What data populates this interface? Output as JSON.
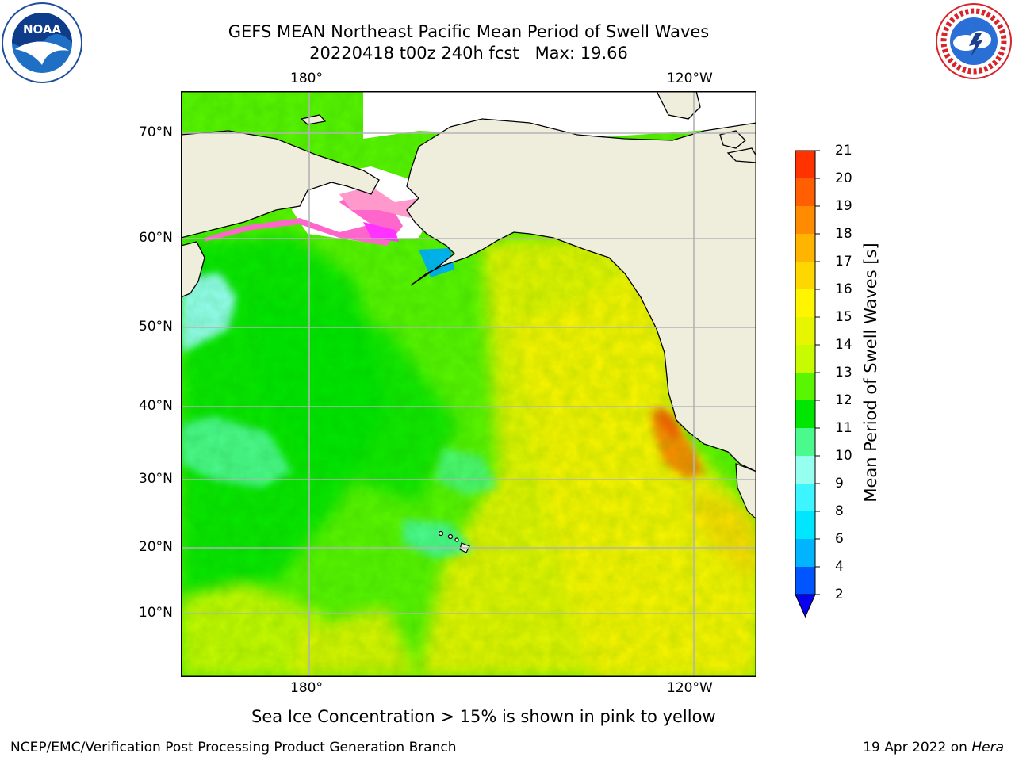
{
  "title_line1": "GEFS MEAN Northeast Pacific Mean Period of Swell Waves",
  "title_line2": "20220418 t00z 240h fcst   Max: 19.66",
  "map": {
    "lon_labels_top": [
      "180°",
      "120°W"
    ],
    "lon_labels_bottom": [
      "180°",
      "120°W"
    ],
    "lat_labels": [
      "70°N",
      "60°N",
      "50°N",
      "40°N",
      "30°N",
      "20°N",
      "10°N"
    ],
    "land_color": "#efeedc",
    "grid_color": "#b3b3b3",
    "islands_label": ""
  },
  "colorbar": {
    "title": "Mean Period of Swell Waves [s]",
    "ticks": [
      "2",
      "4",
      "6",
      "8",
      "9",
      "10",
      "11",
      "12",
      "13",
      "14",
      "15",
      "16",
      "17",
      "18",
      "19",
      "20",
      "21"
    ],
    "colors": [
      "#0055ff",
      "#00b4ff",
      "#00e6ff",
      "#3cf5ff",
      "#96fff0",
      "#4bfa8c",
      "#00e600",
      "#5af500",
      "#c8fa00",
      "#e6f500",
      "#fff500",
      "#ffd700",
      "#ffb400",
      "#ff8c00",
      "#ff5f00",
      "#ff3200"
    ],
    "extend_low_color": "#0a00f0"
  },
  "footnote": "Sea Ice Concentration > 15% is shown in pink to yellow",
  "credit_left": "NCEP/EMC/Verification Post Processing Product Generation Branch",
  "credit_right_prefix": "19 Apr 2022 on ",
  "credit_right_host": "Hera",
  "logos": {
    "noaa": {
      "name": "noaa-logo",
      "text": "NOAA"
    },
    "nws": {
      "name": "nws-logo",
      "text": "NATIONAL WEATHER SERVICE"
    }
  }
}
